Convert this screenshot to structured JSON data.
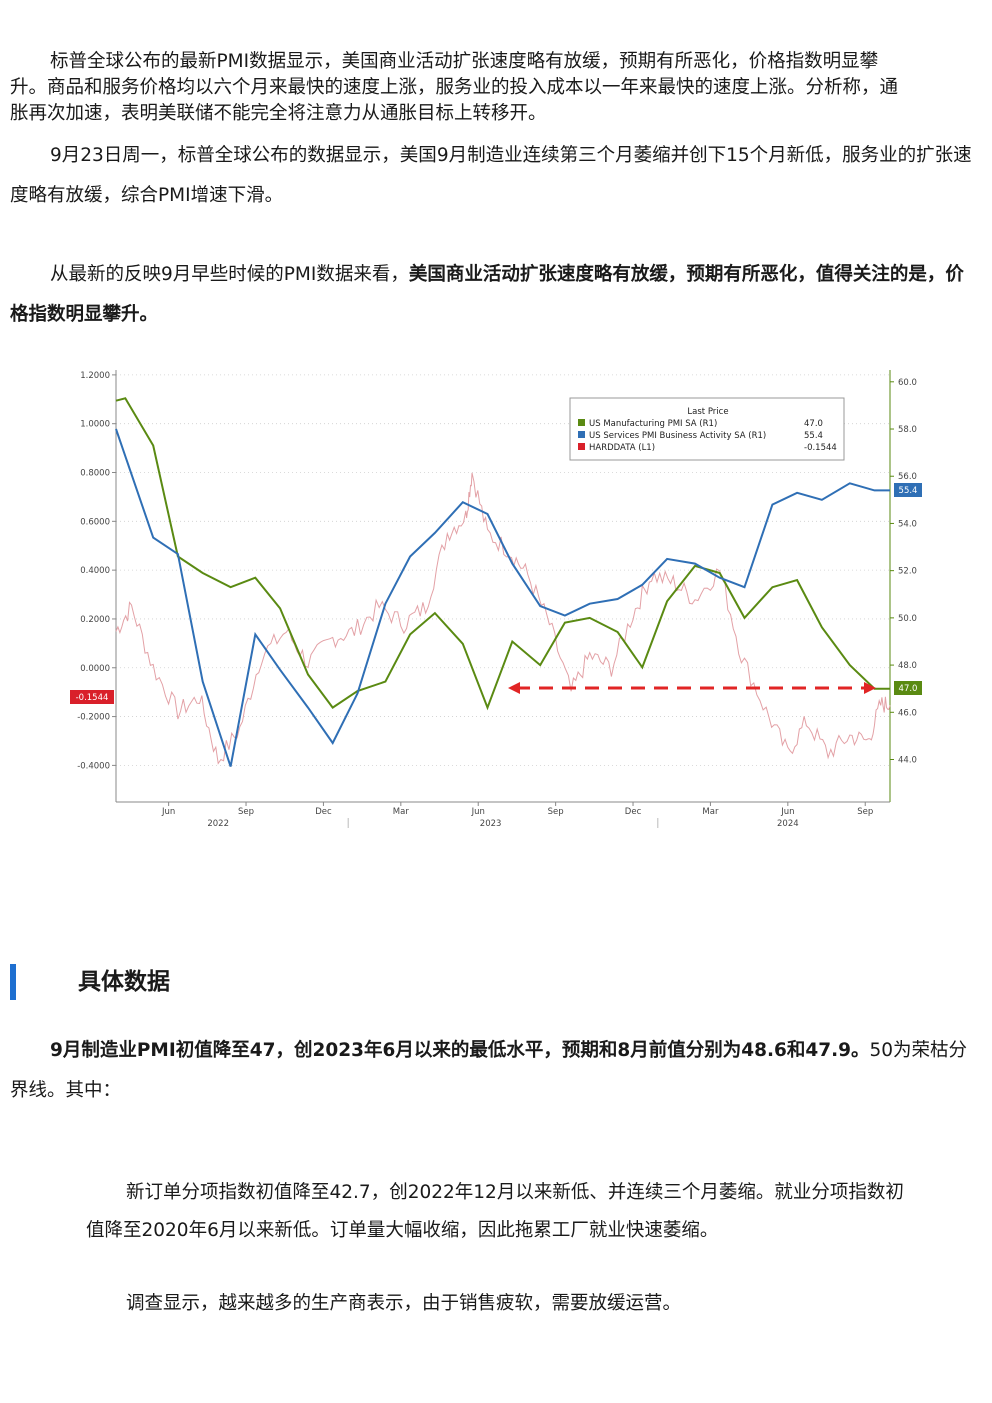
{
  "paragraphs": {
    "p1_line1": "标普全球公布的最新PMI数据显示，美国商业活动扩张速度略有放缓，预期有所恶化，价格指数明显攀",
    "p1_line2": "升。商品和服务价格均以六个月来最快的速度上涨，服务业的投入成本以一年来最快的速度上涨。分析称，通",
    "p1_line3": "胀再次加速，表明美联储不能完全将注意力从通胀目标上转移开。",
    "p2": "9月23日周一，标普全球公布的数据显示，美国9月制造业连续第三个月萎缩并创下15个月新低，服务业的扩张速度略有放缓，综合PMI增速下滑。",
    "p3_normal": "从最新的反映9月早些时候的PMI数据来看，",
    "p3_bold": "美国商业活动扩张速度略有放缓，预期有所恶化，值得关注的是，价格指数明显攀升。",
    "section_heading": "具体数据",
    "p4_bold": "9月制造业PMI初值降至47，创2023年6月以来的最低水平，预期和8月前值分别为48.6和47.9。",
    "p4_normal": "50为荣枯分界线。其中：",
    "p5": "新订单分项指数初值降至42.7，创2022年12月以来新低、并连续三个月萎缩。就业分项指数初值降至2020年6月以来新低。订单量大幅收缩，因此拖累工厂就业快速萎缩。",
    "p6": "调查显示，越来越多的生产商表示，由于销售疲软，需要放缓运营。"
  },
  "chart_data": {
    "type": "line",
    "legend": {
      "title": "Last Price",
      "entries": [
        {
          "name": "US Manufacturing PMI SA  (R1)",
          "last": "47.0",
          "color": "#5a8a12"
        },
        {
          "name": "US Services PMI Business Activity SA  (R1)",
          "last": "55.4",
          "color": "#2f6fb5"
        },
        {
          "name": "HARDDATA  (L1)",
          "last": "-0.1544",
          "color": "#d9202a"
        }
      ]
    },
    "left_axis": {
      "ticks": [
        "1.2000",
        "1.0000",
        "0.8000",
        "0.6000",
        "0.4000",
        "0.2000",
        "0.0000",
        "-0.2000",
        "-0.4000"
      ],
      "range": [
        -0.55,
        1.22
      ]
    },
    "right_axis": {
      "ticks": [
        "60.0",
        "58.0",
        "56.0",
        "54.0",
        "52.0",
        "50.0",
        "48.0",
        "46.0",
        "44.0"
      ],
      "range": [
        42.2,
        60.5
      ]
    },
    "x_ticks": [
      "Jun",
      "Sep",
      "Dec",
      "Mar",
      "Jun",
      "Sep",
      "Dec",
      "Mar",
      "Jun",
      "Sep"
    ],
    "x_years": [
      "2022",
      "2023",
      "2024"
    ],
    "x_range": [
      2022.25,
      2024.75
    ],
    "last_labels": {
      "left": "-0.1544",
      "right_services": "55.4",
      "right_mfg": "47.0"
    },
    "series": [
      {
        "name": "US Manufacturing PMI SA",
        "axis": "right",
        "color": "#5a8a12",
        "x": [
          2022.25,
          2022.28,
          2022.37,
          2022.45,
          2022.53,
          2022.62,
          2022.7,
          2022.78,
          2022.87,
          2022.95,
          2023.03,
          2023.12,
          2023.2,
          2023.28,
          2023.37,
          2023.45,
          2023.53,
          2023.62,
          2023.7,
          2023.78,
          2023.87,
          2023.95,
          2024.03,
          2024.12,
          2024.2,
          2024.28,
          2024.37,
          2024.45,
          2024.53,
          2024.62,
          2024.7,
          2024.75
        ],
        "y": [
          59.2,
          59.3,
          57.3,
          52.6,
          51.9,
          51.3,
          51.7,
          50.4,
          47.6,
          46.2,
          46.9,
          47.3,
          49.3,
          50.2,
          48.9,
          46.2,
          49.0,
          48.0,
          49.8,
          50.0,
          49.4,
          47.9,
          50.7,
          52.2,
          51.9,
          50.0,
          51.3,
          51.6,
          49.6,
          48.0,
          47.0,
          47.0
        ]
      },
      {
        "name": "US Services PMI Business Activity SA",
        "axis": "right",
        "color": "#2f6fb5",
        "x": [
          2022.25,
          2022.37,
          2022.45,
          2022.53,
          2022.62,
          2022.7,
          2022.78,
          2022.87,
          2022.95,
          2023.03,
          2023.12,
          2023.2,
          2023.28,
          2023.37,
          2023.45,
          2023.53,
          2023.62,
          2023.7,
          2023.78,
          2023.87,
          2023.95,
          2024.03,
          2024.12,
          2024.2,
          2024.28,
          2024.37,
          2024.45,
          2024.53,
          2024.62,
          2024.7,
          2024.75
        ],
        "y": [
          58.0,
          53.4,
          52.7,
          47.3,
          43.7,
          49.3,
          47.8,
          46.2,
          44.7,
          46.8,
          50.6,
          52.6,
          53.6,
          54.9,
          54.4,
          52.3,
          50.5,
          50.1,
          50.6,
          50.8,
          51.4,
          52.5,
          52.3,
          51.7,
          51.3,
          54.8,
          55.3,
          55.0,
          55.7,
          55.4,
          55.4
        ]
      }
    ]
  }
}
